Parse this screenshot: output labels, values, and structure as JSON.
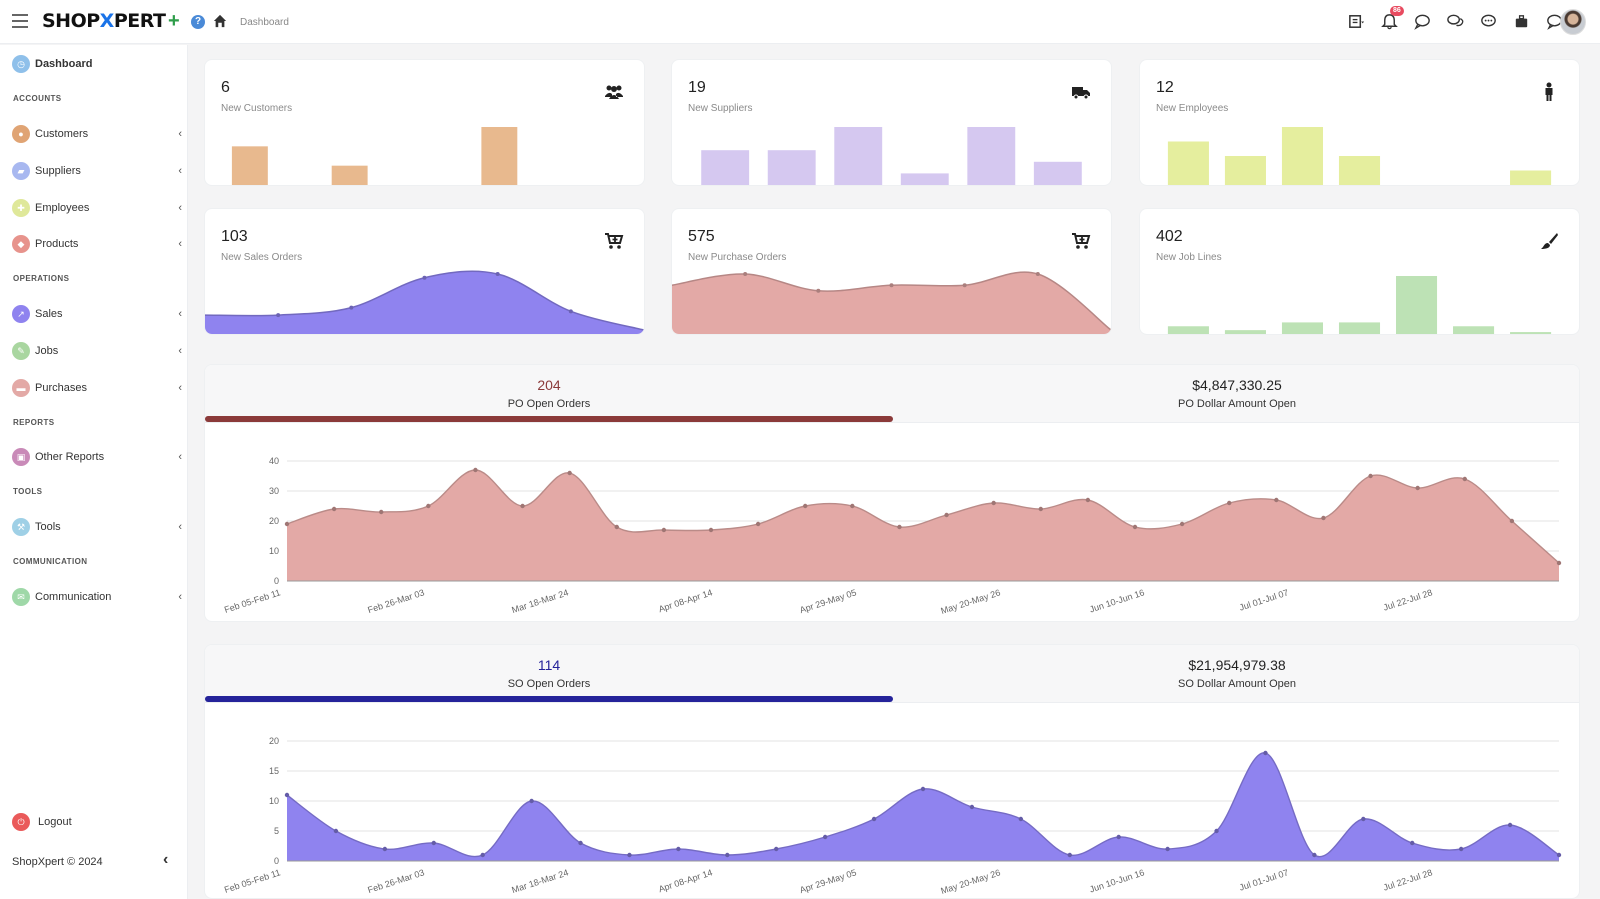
{
  "header": {
    "brand_prefix": "SHOP",
    "brand_x": "X",
    "brand_suffix": "PERT",
    "breadcrumb": "Dashboard",
    "notification_count": "86"
  },
  "sidebar": {
    "dashboard": "Dashboard",
    "sections": {
      "accounts": "ACCOUNTS",
      "operations": "OPERATIONS",
      "reports": "REPORTS",
      "tools": "TOOLS",
      "communication": "COMMUNICATION"
    },
    "items": {
      "customers": "Customers",
      "suppliers": "Suppliers",
      "employees": "Employees",
      "products": "Products",
      "sales": "Sales",
      "jobs": "Jobs",
      "purchases": "Purchases",
      "other_reports": "Other Reports",
      "tools": "Tools",
      "communication": "Communication"
    },
    "logout": "Logout",
    "footer": "ShopXpert © 2024"
  },
  "kpis": {
    "customers": {
      "value": "6",
      "label": "New Customers"
    },
    "suppliers": {
      "value": "19",
      "label": "New Suppliers"
    },
    "employees": {
      "value": "12",
      "label": "New Employees"
    },
    "sales_orders": {
      "value": "103",
      "label": "New Sales Orders"
    },
    "purchase_orders": {
      "value": "575",
      "label": "New Purchase Orders"
    },
    "job_lines": {
      "value": "402",
      "label": "New Job Lines"
    }
  },
  "po_panel": {
    "open_orders": "204",
    "open_orders_label": "PO Open Orders",
    "dollar_open": "$4,847,330.25",
    "dollar_open_label": "PO Dollar Amount Open"
  },
  "so_panel": {
    "open_orders": "114",
    "open_orders_label": "SO Open Orders",
    "dollar_open": "$21,954,979.38",
    "dollar_open_label": "SO Dollar Amount Open"
  },
  "colors": {
    "customers": "#e8b98e",
    "suppliers": "#d5c8f0",
    "employees": "#e5ee9e",
    "sales": "#8f83ef",
    "purchase": "#e3a9a6",
    "jobs": "#bde2b5",
    "po_accent": "#8b3a3a",
    "so_accent": "#25239a"
  },
  "chart_data": [
    {
      "type": "bar",
      "title": "New Customers",
      "values": [
        4,
        0,
        2,
        0,
        0,
        6,
        0,
        0
      ]
    },
    {
      "type": "bar",
      "title": "New Suppliers",
      "values": [
        3,
        3,
        5,
        1,
        5,
        2
      ]
    },
    {
      "type": "bar",
      "title": "New Employees",
      "values": [
        4.5,
        3,
        6,
        3,
        0,
        0,
        1.5
      ]
    },
    {
      "type": "area",
      "title": "New Sales Orders",
      "values": [
        2,
        2,
        3,
        7,
        7.5,
        2.5,
        0
      ]
    },
    {
      "type": "area",
      "title": "New Purchase Orders",
      "values": [
        4,
        5,
        3.5,
        4,
        4,
        5,
        0
      ]
    },
    {
      "type": "bar",
      "title": "New Job Lines",
      "values": [
        4,
        2,
        6,
        6,
        30,
        4,
        1
      ]
    },
    {
      "type": "area",
      "title": "PO Open Orders",
      "ylim": [
        0,
        40
      ],
      "yticks": [
        0,
        10,
        20,
        30,
        40
      ],
      "xticks": [
        "Feb 05-Feb 11",
        "Feb 26-Mar 03",
        "Mar 18-Mar 24",
        "Apr 08-Apr 14",
        "Apr 29-May 05",
        "May 20-May 26",
        "Jun 10-Jun 16",
        "Jul 01-Jul 07",
        "Jul 22-Jul 28"
      ],
      "values": [
        19,
        24,
        23,
        25,
        37,
        25,
        36,
        18,
        17,
        17,
        19,
        25,
        25,
        18,
        22,
        26,
        24,
        27,
        18,
        19,
        26,
        27,
        21,
        35,
        31,
        34,
        20,
        6
      ]
    },
    {
      "type": "area",
      "title": "SO Open Orders",
      "ylim": [
        0,
        20
      ],
      "yticks": [
        0,
        5,
        10,
        15,
        20
      ],
      "xticks": [
        "Feb 05-Feb 11",
        "Feb 26-Mar 03",
        "Mar 18-Mar 24",
        "Apr 08-Apr 14",
        "Apr 29-May 05",
        "May 20-May 26",
        "Jun 10-Jun 16",
        "Jul 01-Jul 07",
        "Jul 22-Jul 28"
      ],
      "values": [
        11,
        5,
        2,
        3,
        1,
        10,
        3,
        1,
        2,
        1,
        2,
        4,
        7,
        12,
        9,
        7,
        1,
        4,
        2,
        5,
        18,
        1,
        7,
        3,
        2,
        6,
        1
      ]
    }
  ]
}
